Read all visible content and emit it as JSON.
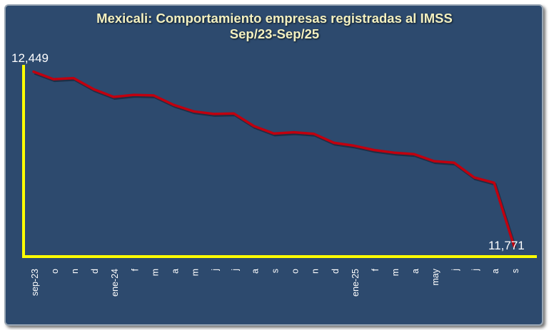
{
  "chart_data": {
    "type": "line",
    "title": "Mexicali: Comportamiento empresas registradas al IMSS",
    "subtitle": "Sep/23-Sep/25",
    "x": [
      "sep-23",
      "o",
      "n",
      "d",
      "ene-24",
      "f",
      "m",
      "a",
      "m",
      "j",
      "j",
      "a",
      "s",
      "o",
      "n",
      "d",
      "ene-25",
      "f",
      "m",
      "a",
      "may",
      "j",
      "j",
      "a",
      "s"
    ],
    "series": [
      {
        "values": [
          12449,
          12420,
          12424,
          12381,
          12351,
          12359,
          12357,
          12320,
          12295,
          12285,
          12287,
          12238,
          12209,
          12214,
          12208,
          12173,
          12162,
          12145,
          12135,
          12129,
          12102,
          12096,
          12039,
          12018,
          11771
        ]
      }
    ],
    "data_labels": {
      "first": "12,449",
      "last": "11,771"
    },
    "ylim": [
      11740,
      12470
    ],
    "grid": false,
    "legend": "none",
    "colors": {
      "line": "#c0000f",
      "axis": "#ffff00",
      "background": "#2d4a6e",
      "title": "#f3f0c0",
      "labels": "#ffffff"
    }
  }
}
